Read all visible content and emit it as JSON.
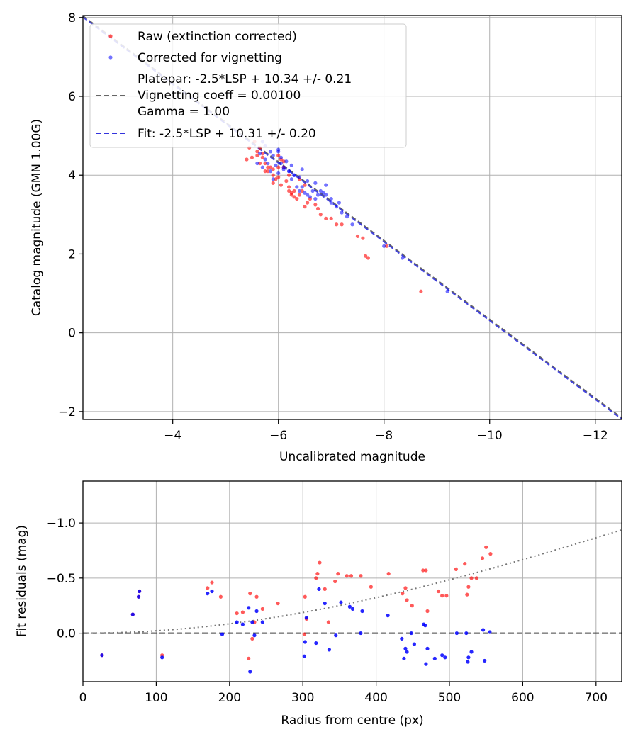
{
  "chart_data": [
    {
      "type": "scatter",
      "xlabel": "Uncalibrated magnitude",
      "ylabel": "Catalog magnitude (GMN 1.00G)",
      "xlim": [
        -2.3,
        -12.5
      ],
      "ylim": [
        8.05,
        -2.2
      ],
      "xticks": [
        -4,
        -6,
        -8,
        -10,
        -12
      ],
      "xtick_labels": [
        "−4",
        "−6",
        "−8",
        "−10",
        "−12"
      ],
      "yticks": [
        -2,
        0,
        2,
        4,
        6,
        8
      ],
      "ytick_labels": [
        "−2",
        "0",
        "2",
        "4",
        "6",
        "8"
      ],
      "grid": true,
      "legend_position": "top-left",
      "legend": [
        {
          "label": "Raw (extinction corrected)",
          "kind": "marker",
          "color": "#ff0000"
        },
        {
          "label": "Corrected for vignetting",
          "kind": "marker",
          "color": "#0000ff"
        },
        {
          "label": "Platepar: -2.5*LSP + 10.34 +/- 0.21",
          "kind": "line",
          "color": "#666666"
        },
        {
          "label": "Vignetting coeff = 0.00100",
          "kind": "text"
        },
        {
          "label": "Gamma = 1.00",
          "kind": "text"
        },
        {
          "label": "Fit: -2.5*LSP + 10.31 +/- 0.20",
          "kind": "line",
          "color": "#3333dd"
        }
      ],
      "series": [
        {
          "name": "Raw (extinction corrected)",
          "color": "#ff0000",
          "x": [
            -5.4,
            -5.5,
            -5.45,
            -5.6,
            -5.65,
            -5.7,
            -5.75,
            -5.8,
            -5.8,
            -5.85,
            -5.9,
            -5.9,
            -5.95,
            -6.0,
            -6.0,
            -6.05,
            -6.1,
            -6.15,
            -6.2,
            -6.2,
            -6.25,
            -6.3,
            -6.3,
            -6.35,
            -6.4,
            -6.45,
            -6.5,
            -6.55,
            -6.6,
            -6.7,
            -6.75,
            -6.8,
            -6.9,
            -7.0,
            -7.1,
            -7.2,
            -7.5,
            -7.6,
            -7.65,
            -7.7,
            -8.05,
            -8.7,
            -5.55,
            -5.6,
            -5.65,
            -5.7,
            -5.75,
            -5.9,
            -6.0,
            -6.05,
            -6.1,
            -6.2,
            -6.25,
            -6.4,
            -6.5
          ],
          "y": [
            4.4,
            4.45,
            4.7,
            4.6,
            4.3,
            4.45,
            4.3,
            4.2,
            4.1,
            4.2,
            4.15,
            3.8,
            3.9,
            3.95,
            4.2,
            3.75,
            4.35,
            3.85,
            3.6,
            4.0,
            3.5,
            3.6,
            3.45,
            3.4,
            3.5,
            3.6,
            3.2,
            3.3,
            3.4,
            3.25,
            3.15,
            3.0,
            2.9,
            2.9,
            2.75,
            2.75,
            2.45,
            2.4,
            1.95,
            1.9,
            2.2,
            1.05,
            4.85,
            4.5,
            4.7,
            4.55,
            4.1,
            4.0,
            4.5,
            4.4,
            4.2,
            3.7,
            3.55,
            3.9,
            3.75
          ]
        },
        {
          "name": "Corrected for vignetting",
          "color": "#0000ff",
          "x": [
            -5.6,
            -5.65,
            -5.7,
            -5.75,
            -5.8,
            -5.85,
            -5.9,
            -5.95,
            -6.0,
            -6.0,
            -6.05,
            -6.1,
            -6.15,
            -6.2,
            -6.25,
            -6.3,
            -6.35,
            -6.4,
            -6.45,
            -6.5,
            -6.55,
            -6.6,
            -6.65,
            -6.7,
            -6.75,
            -6.8,
            -6.85,
            -6.9,
            -7.0,
            -7.1,
            -7.2,
            -7.3,
            -7.4,
            -8.0,
            -8.35,
            -9.2,
            -5.7,
            -5.75,
            -5.85,
            -6.0,
            -6.1,
            -6.2,
            -6.3,
            -6.4,
            -6.55,
            -6.7,
            -6.9,
            -7.0,
            -7.15,
            -5.9,
            -6.05,
            -6.25,
            -6.45
          ],
          "y": [
            4.3,
            4.55,
            4.2,
            4.4,
            4.3,
            4.1,
            4.5,
            4.25,
            4.05,
            4.6,
            4.3,
            4.15,
            4.35,
            4.1,
            3.9,
            4.0,
            3.7,
            3.6,
            3.7,
            3.55,
            3.5,
            3.45,
            3.6,
            3.4,
            3.5,
            3.6,
            3.55,
            3.5,
            3.3,
            3.2,
            3.05,
            2.95,
            2.75,
            2.2,
            1.9,
            1.05,
            4.85,
            4.75,
            4.6,
            4.65,
            4.2,
            4.1,
            4.0,
            3.95,
            3.85,
            3.8,
            3.75,
            3.4,
            3.3,
            3.9,
            4.45,
            4.25,
            4.15
          ]
        }
      ],
      "lines": [
        {
          "name": "Platepar",
          "color": "#666666",
          "style": "dashed",
          "slope": 1,
          "intercept": 10.34
        },
        {
          "name": "Fit",
          "color": "#3333dd",
          "style": "dashed",
          "slope": 1,
          "intercept": 10.31
        }
      ]
    },
    {
      "type": "scatter",
      "xlabel": "Radius from centre (px)",
      "ylabel": "Fit residuals (mag)",
      "xlim": [
        0,
        735
      ],
      "ylim": [
        -1.38,
        0.44
      ],
      "xticks": [
        0,
        100,
        200,
        300,
        400,
        500,
        600,
        700
      ],
      "xtick_labels": [
        "0",
        "100",
        "200",
        "300",
        "400",
        "500",
        "600",
        "700"
      ],
      "yticks": [
        -1.0,
        -0.5,
        0.0
      ],
      "ytick_labels": [
        "−1.0",
        "−0.5",
        "0.0"
      ],
      "grid": true,
      "series": [
        {
          "name": "Raw (extinction corrected)",
          "color": "#ff0000",
          "x": [
            26,
            68,
            76,
            77,
            108,
            170,
            176,
            188,
            210,
            218,
            226,
            228,
            231,
            234,
            237,
            245,
            266,
            302,
            303,
            305,
            318,
            320,
            323,
            330,
            335,
            344,
            348,
            360,
            366,
            379,
            393,
            417,
            436,
            440,
            442,
            449,
            464,
            468,
            470,
            485,
            490,
            496,
            509,
            521,
            524,
            526,
            530,
            537,
            545,
            550,
            556
          ],
          "y": [
            0.2,
            -0.17,
            -0.33,
            -0.38,
            0.2,
            -0.41,
            -0.46,
            -0.33,
            -0.18,
            -0.19,
            0.23,
            -0.36,
            0.05,
            -0.1,
            -0.33,
            -0.22,
            -0.27,
            0.01,
            -0.33,
            -0.13,
            -0.5,
            -0.54,
            -0.64,
            -0.4,
            -0.1,
            -0.47,
            -0.54,
            -0.52,
            -0.52,
            -0.52,
            -0.42,
            -0.54,
            -0.36,
            -0.41,
            -0.3,
            -0.25,
            -0.57,
            -0.57,
            -0.2,
            -0.38,
            -0.34,
            -0.34,
            -0.58,
            -0.63,
            -0.35,
            -0.42,
            -0.5,
            -0.5,
            -0.68,
            -0.78,
            -0.72
          ]
        },
        {
          "name": "Corrected for vignetting",
          "color": "#0000ff",
          "x": [
            26,
            68,
            76,
            77,
            108,
            170,
            176,
            190,
            210,
            218,
            226,
            228,
            231,
            234,
            237,
            245,
            302,
            303,
            305,
            318,
            322,
            330,
            336,
            345,
            352,
            364,
            368,
            379,
            381,
            416,
            435,
            438,
            440,
            442,
            448,
            452,
            465,
            467,
            468,
            470,
            480,
            490,
            494,
            510,
            523,
            525,
            526,
            530,
            546,
            548,
            555
          ],
          "y": [
            0.2,
            -0.17,
            -0.33,
            -0.38,
            0.22,
            -0.36,
            -0.38,
            0.01,
            -0.1,
            -0.08,
            -0.23,
            0.35,
            -0.1,
            0.02,
            -0.2,
            -0.1,
            0.21,
            0.08,
            -0.14,
            0.09,
            -0.4,
            -0.27,
            0.15,
            0.02,
            -0.28,
            -0.24,
            -0.22,
            0.0,
            -0.2,
            -0.16,
            0.05,
            0.23,
            0.14,
            0.17,
            0.0,
            0.1,
            -0.08,
            -0.07,
            0.28,
            0.14,
            0.23,
            0.2,
            0.22,
            0.0,
            0.0,
            0.26,
            0.22,
            0.17,
            -0.03,
            0.25,
            -0.01
          ]
        }
      ],
      "lines": [
        {
          "name": "zero",
          "color": "#444444",
          "style": "dashed",
          "y": 0.0
        },
        {
          "name": "vignetting model",
          "color": "#777777",
          "style": "dotted",
          "coeff": 0.001
        }
      ]
    }
  ]
}
